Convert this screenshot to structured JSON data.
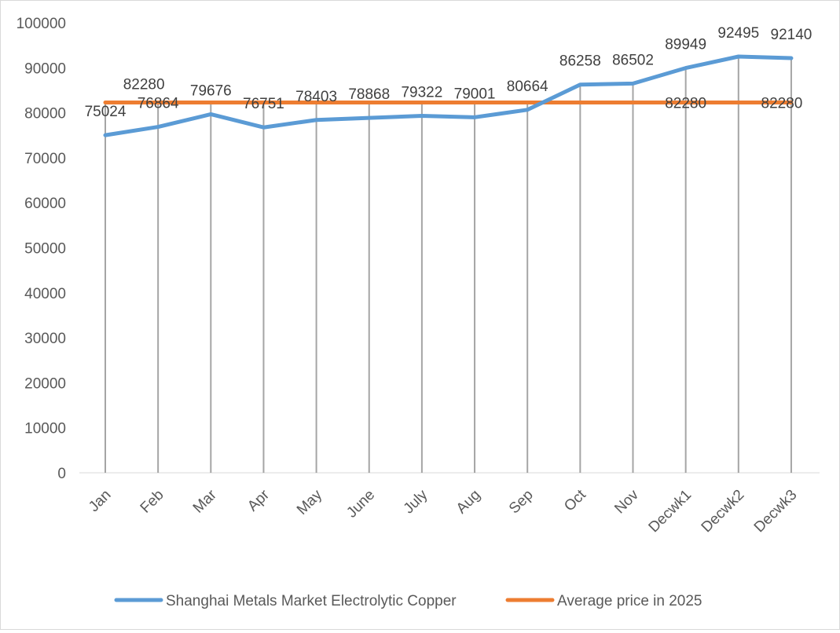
{
  "chart_data": {
    "type": "line",
    "categories": [
      "Jan",
      "Feb",
      "Mar",
      "Apr",
      "May",
      "June",
      "July",
      "Aug",
      "Sep",
      "Oct",
      "Nov",
      "Decwk1",
      "Decwk2",
      "Decwk3"
    ],
    "series": [
      {
        "name": "Shanghai Metals Market Electrolytic Copper",
        "color": "#5b9bd5",
        "values": [
          75024,
          76864,
          79676,
          76751,
          78403,
          78868,
          79322,
          79001,
          80664,
          86258,
          86502,
          89949,
          92495,
          92140
        ],
        "data_labels_shown": [
          true,
          true,
          true,
          true,
          true,
          true,
          true,
          true,
          true,
          true,
          true,
          true,
          true,
          true
        ]
      },
      {
        "name": "Average price in 2025",
        "color": "#ed7d31",
        "values": [
          82280,
          82280,
          82280,
          82280,
          82280,
          82280,
          82280,
          82280,
          82280,
          82280,
          82280,
          82280,
          82280,
          82280
        ],
        "data_labels_shown": [
          false,
          true,
          false,
          false,
          false,
          false,
          false,
          false,
          false,
          false,
          false,
          true,
          false,
          true
        ]
      }
    ],
    "title": "",
    "xlabel": "",
    "ylabel": "",
    "ylim": [
      0,
      100000
    ],
    "yticks": [
      0,
      10000,
      20000,
      30000,
      40000,
      50000,
      60000,
      70000,
      80000,
      90000,
      100000
    ],
    "drop_lines": true,
    "grid": false,
    "legend_position": "bottom"
  }
}
